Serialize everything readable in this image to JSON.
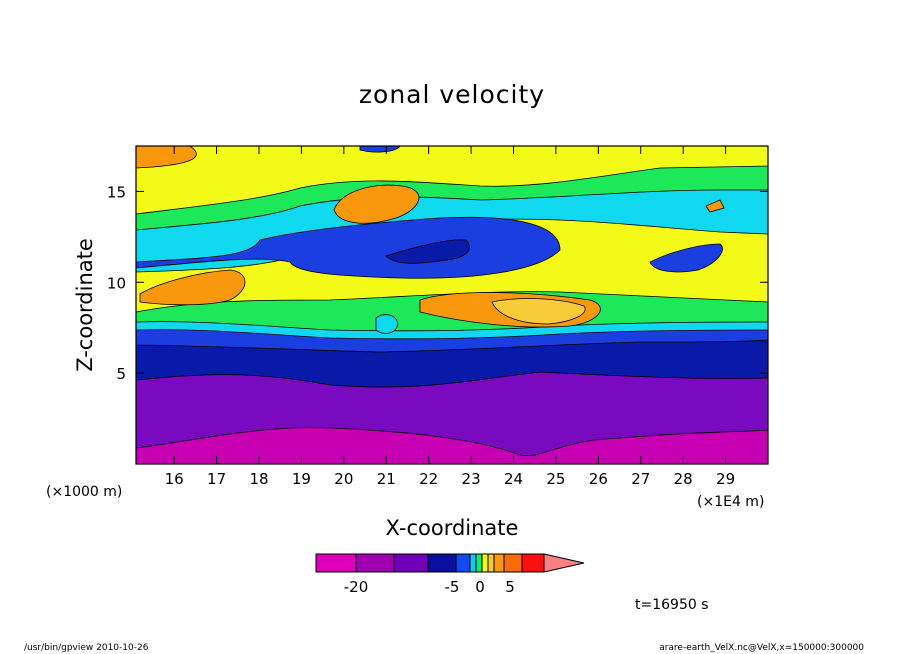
{
  "chart_data": {
    "type": "heatmap",
    "title": "zonal velocity",
    "xlabel": "X-coordinate",
    "ylabel": "Z-coordinate",
    "x_unit_left": "(×1000 m)",
    "x_unit_right": "(×1E4 m)",
    "x_ticks": [
      16,
      17,
      18,
      19,
      20,
      21,
      22,
      23,
      24,
      25,
      26,
      27,
      28,
      29
    ],
    "y_ticks": [
      5,
      10,
      15
    ],
    "xlim": [
      15.1,
      30
    ],
    "ylim": [
      0,
      17.5
    ],
    "time_label": "t=16950 s",
    "colorbar": {
      "levels": [
        -25,
        -20,
        -15,
        -10,
        -5,
        -3,
        -2,
        -1,
        0,
        1,
        2,
        5,
        10,
        15
      ],
      "tick_labels": [
        "-20",
        "-5",
        "0",
        "5"
      ],
      "colors": [
        "#dd00bb",
        "#a000b0",
        "#7000b8",
        "#0a0fa0",
        "#1448f0",
        "#11c8f2",
        "#14e878",
        "#f2fa14",
        "#f7c832",
        "#f99810",
        "#f86a0a",
        "#f81010",
        "#f88080"
      ]
    },
    "band_fills": [
      "#c800b4",
      "#7a0abf",
      "#0a1aa8",
      "#1a3ee0",
      "#10d8ee",
      "#1de85a",
      "#f4fa18",
      "#f8cc38",
      "#f9980c"
    ],
    "bands_z_rows": [
      {
        "z": 0.8,
        "u": -20
      },
      {
        "z": 3.0,
        "u": -12
      },
      {
        "z": 5.3,
        "u": -8
      },
      {
        "z": 6.5,
        "u": -6
      },
      {
        "z": 7.8,
        "u": 1
      },
      {
        "z": 9.0,
        "u": 3
      },
      {
        "z": 10.2,
        "u": 0
      },
      {
        "z": 11.8,
        "u": -4
      },
      {
        "z": 14.5,
        "u": 1
      },
      {
        "z": 16.5,
        "u": 3
      }
    ]
  },
  "footer": {
    "left": "/usr/bin/gpview   2010-10-26",
    "right": "arare-earth_VelX.nc@VelX,x=150000:300000"
  }
}
